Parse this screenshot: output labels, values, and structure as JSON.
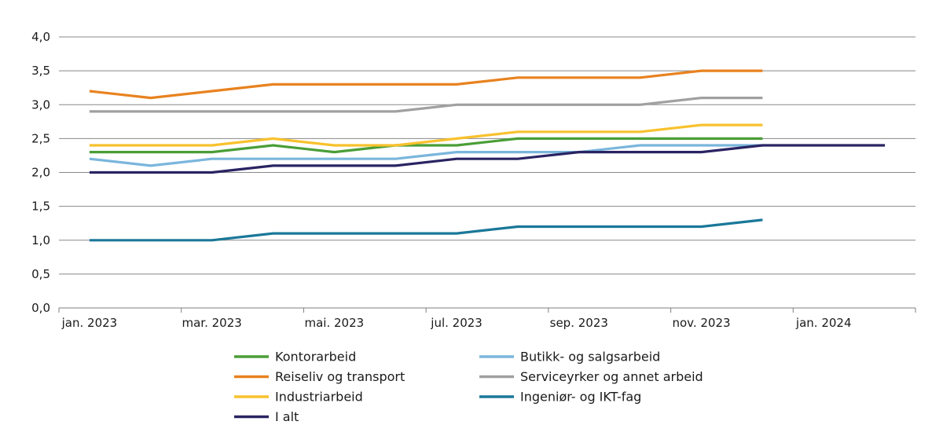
{
  "chart_data": {
    "type": "line",
    "title": "",
    "xlabel": "",
    "ylabel": "",
    "ylim": [
      0,
      4
    ],
    "y_ticks": [
      0,
      0.5,
      1.0,
      1.5,
      2.0,
      2.5,
      3.0,
      3.5,
      4.0
    ],
    "y_tick_labels": [
      "0,0",
      "0,5",
      "1,0",
      "1,5",
      "2,0",
      "2,5",
      "3,0",
      "3,5",
      "4,0"
    ],
    "x_tick_labels": [
      "jan. 2023",
      "mar. 2023",
      "mai. 2023",
      "jul. 2023",
      "sep. 2023",
      "nov. 2023",
      "jan. 2024"
    ],
    "x_tick_months": [
      0,
      2,
      4,
      6,
      8,
      10,
      12
    ],
    "xlim_months": [
      -0.5,
      13.5
    ],
    "grid": true,
    "legend_position": "bottom",
    "series": [
      {
        "name": "Kontorarbeid",
        "color": "#4a9e37",
        "x": [
          0,
          1,
          2,
          3,
          4,
          5,
          6,
          7,
          8,
          9,
          10,
          11
        ],
        "values": [
          2.3,
          2.3,
          2.3,
          2.4,
          2.3,
          2.4,
          2.4,
          2.5,
          2.5,
          2.5,
          2.5,
          2.5
        ]
      },
      {
        "name": "Butikk- og salgsarbeid",
        "color": "#7ab6dc",
        "x": [
          0,
          1,
          2,
          3,
          4,
          5,
          6,
          7,
          8,
          9,
          10,
          11
        ],
        "values": [
          2.2,
          2.1,
          2.2,
          2.2,
          2.2,
          2.2,
          2.3,
          2.3,
          2.3,
          2.4,
          2.4,
          2.4
        ]
      },
      {
        "name": "Reiseliv og transport",
        "color": "#e8821f",
        "x": [
          0,
          1,
          2,
          3,
          4,
          5,
          6,
          7,
          8,
          9,
          10,
          11
        ],
        "values": [
          3.2,
          3.1,
          3.2,
          3.3,
          3.3,
          3.3,
          3.3,
          3.4,
          3.4,
          3.4,
          3.5,
          3.5
        ]
      },
      {
        "name": "Serviceyrker og annet arbeid",
        "color": "#a0a0a0",
        "x": [
          0,
          1,
          2,
          3,
          4,
          5,
          6,
          7,
          8,
          9,
          10,
          11
        ],
        "values": [
          2.9,
          2.9,
          2.9,
          2.9,
          2.9,
          2.9,
          3.0,
          3.0,
          3.0,
          3.0,
          3.1,
          3.1
        ]
      },
      {
        "name": "Industriarbeid",
        "color": "#f8c12d",
        "x": [
          0,
          1,
          2,
          3,
          4,
          5,
          6,
          7,
          8,
          9,
          10,
          11
        ],
        "values": [
          2.4,
          2.4,
          2.4,
          2.5,
          2.4,
          2.4,
          2.5,
          2.6,
          2.6,
          2.6,
          2.7,
          2.7
        ]
      },
      {
        "name": "Ingeniør- og IKT-fag",
        "color": "#1a7899",
        "x": [
          0,
          1,
          2,
          3,
          4,
          5,
          6,
          7,
          8,
          9,
          10,
          11
        ],
        "values": [
          1.0,
          1.0,
          1.0,
          1.1,
          1.1,
          1.1,
          1.1,
          1.2,
          1.2,
          1.2,
          1.2,
          1.3
        ]
      },
      {
        "name": "I alt",
        "color": "#2a2463",
        "x": [
          0,
          1,
          2,
          3,
          4,
          5,
          6,
          7,
          8,
          9,
          10,
          11,
          12,
          13
        ],
        "values": [
          2.0,
          2.0,
          2.0,
          2.1,
          2.1,
          2.1,
          2.2,
          2.2,
          2.3,
          2.3,
          2.3,
          2.4,
          2.4,
          2.4
        ]
      }
    ]
  }
}
